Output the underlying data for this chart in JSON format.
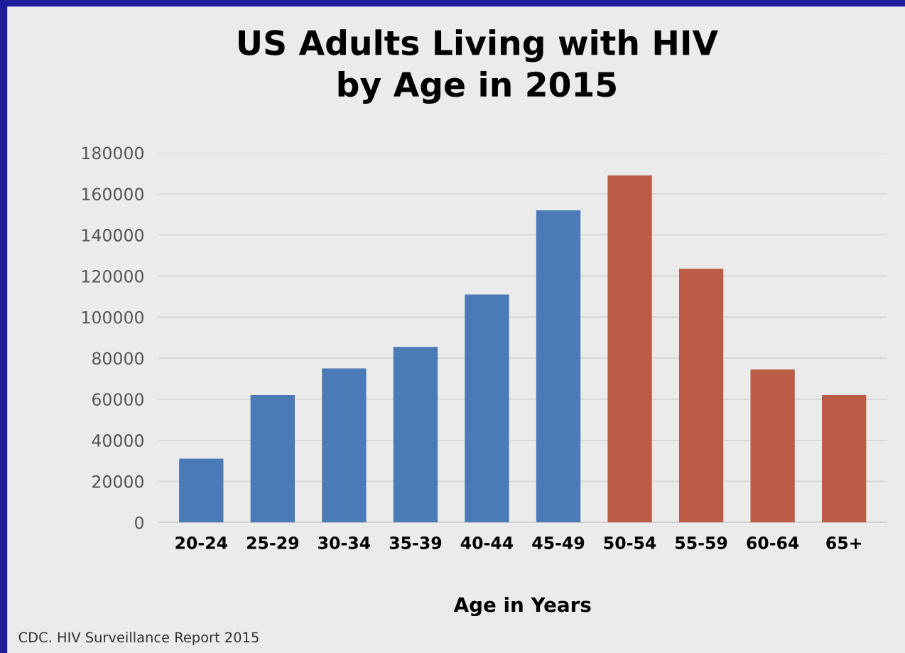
{
  "chart_data": {
    "type": "bar",
    "title": "US Adults Living with HIV\nby Age in 2015",
    "xlabel": "Age in Years",
    "categories": [
      "20-24",
      "25-29",
      "30-34",
      "35-39",
      "40-44",
      "45-49",
      "50-54",
      "55-59",
      "60-64",
      "65+"
    ],
    "values": [
      31000,
      62000,
      75000,
      85500,
      111000,
      152000,
      169000,
      123500,
      74500,
      62000
    ],
    "colors": [
      "#4a7bb7",
      "#4a7bb7",
      "#4a7bb7",
      "#4a7bb7",
      "#4a7bb7",
      "#4a7bb7",
      "#bb5d46",
      "#bb5d46",
      "#bb5d46",
      "#bb5d46"
    ],
    "ylim": [
      0,
      180000
    ],
    "yticks": [
      0,
      20000,
      40000,
      60000,
      80000,
      100000,
      120000,
      140000,
      160000,
      180000
    ],
    "grid": "y",
    "annotations": [
      "CDC. HIV Surveillance Report 2015"
    ]
  }
}
